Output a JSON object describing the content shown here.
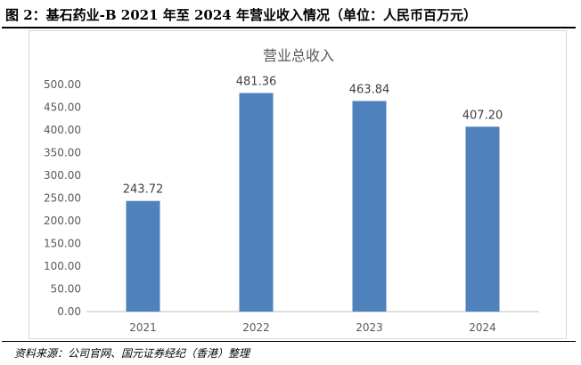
{
  "figure": {
    "title": "图 2：基石药业-B 2021 年至 2024 年营业收入情况（单位：人民币百万元）",
    "source": "资料来源：公司官网、国元证券经纪（香港）整理"
  },
  "chart_data": {
    "type": "bar",
    "title": "营业总收入",
    "categories": [
      "2021",
      "2022",
      "2023",
      "2024"
    ],
    "series": [
      {
        "values": [
          243.72,
          481.36,
          463.84,
          407.2
        ],
        "labels": [
          "243.72",
          "481.36",
          "463.84",
          "407.20"
        ]
      }
    ],
    "yticks": [
      "0.00",
      "50.00",
      "100.00",
      "150.00",
      "200.00",
      "250.00",
      "300.00",
      "350.00",
      "400.00",
      "450.00",
      "500.00"
    ],
    "ylim": [
      0,
      500
    ],
    "xlabel": "",
    "ylabel": "",
    "grid": false,
    "bar_color": "#4f81bd"
  }
}
